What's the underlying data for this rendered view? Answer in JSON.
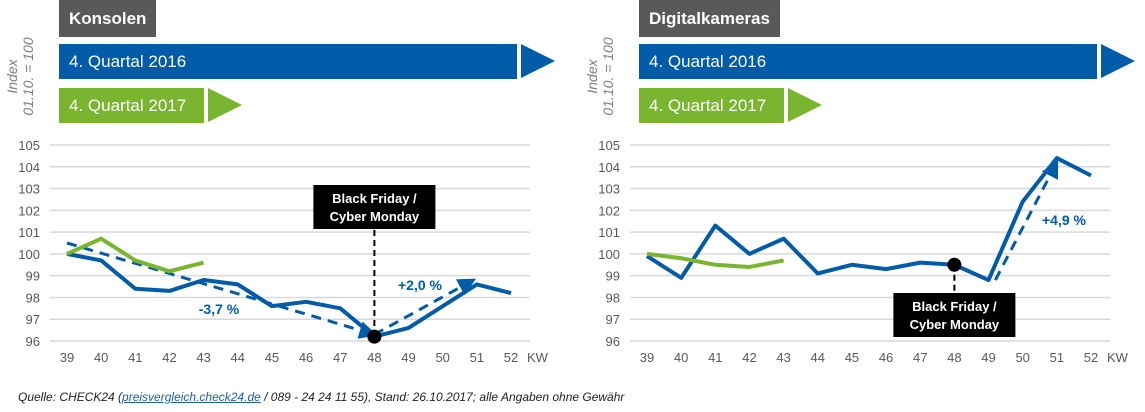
{
  "legend": {
    "series_2016": "4. Quartal 2016",
    "series_2017": "4. Quartal 2017"
  },
  "colors": {
    "blue": "#005BA8",
    "green": "#7AB52F",
    "title_bg": "#595959",
    "grid": "#D9D9D9",
    "tick": "#595959"
  },
  "y_axis_label": {
    "line1": "Index",
    "line2": "01.10. = 100"
  },
  "source": {
    "prefix": "Quelle: CHECK24 (",
    "link": "preisvergleich.check24.de",
    "suffix": " / 089 - 24 24 11 55), Stand: 26.10.2017; alle Angaben ohne Gewähr"
  },
  "chart_data": [
    {
      "type": "line",
      "title": "Konsolen",
      "xlabel": "KW",
      "ylabel": "Index 01.10. = 100",
      "x": [
        39,
        40,
        41,
        42,
        43,
        44,
        45,
        46,
        47,
        48,
        49,
        50,
        51,
        52
      ],
      "ylim": [
        96,
        105
      ],
      "yticks": [
        96,
        97,
        98,
        99,
        100,
        101,
        102,
        103,
        104,
        105
      ],
      "grid": true,
      "series": [
        {
          "name": "4. Quartal 2016",
          "color": "#005BA8",
          "values": [
            100.0,
            99.7,
            98.4,
            98.3,
            98.8,
            98.6,
            97.6,
            97.8,
            97.5,
            96.2,
            96.6,
            97.6,
            98.6,
            98.2
          ]
        },
        {
          "name": "4. Quartal 2017",
          "color": "#7AB52F",
          "values": [
            100.0,
            100.7,
            99.7,
            99.2,
            99.6,
            null,
            null,
            null,
            null,
            null,
            null,
            null,
            null,
            null
          ]
        }
      ],
      "trend_arrows": [
        {
          "from": [
            39,
            100.5
          ],
          "to": [
            48,
            96.3
          ],
          "label": "-3,7 %"
        },
        {
          "from": [
            48,
            96.3
          ],
          "to": [
            50.9,
            98.8
          ],
          "label": "+2,0 %"
        }
      ],
      "annotation": {
        "text_line1": "Black Friday /",
        "text_line2": "Cyber Monday",
        "x": 48,
        "y": 96.2,
        "position": "above"
      }
    },
    {
      "type": "line",
      "title": "Digitalkameras",
      "xlabel": "KW",
      "ylabel": "Index 01.10. = 100",
      "x": [
        39,
        40,
        41,
        42,
        43,
        44,
        45,
        46,
        47,
        48,
        49,
        50,
        51,
        52
      ],
      "ylim": [
        96,
        105
      ],
      "yticks": [
        96,
        97,
        98,
        99,
        100,
        101,
        102,
        103,
        104,
        105
      ],
      "grid": true,
      "series": [
        {
          "name": "4. Quartal 2016",
          "color": "#005BA8",
          "values": [
            99.9,
            98.9,
            101.3,
            100.0,
            100.7,
            99.1,
            99.5,
            99.3,
            99.6,
            99.5,
            98.8,
            102.4,
            104.4,
            103.6
          ]
        },
        {
          "name": "4. Quartal 2017",
          "color": "#7AB52F",
          "values": [
            100.0,
            99.8,
            99.5,
            99.4,
            99.7,
            null,
            null,
            null,
            null,
            null,
            null,
            null,
            null,
            null
          ]
        }
      ],
      "trend_arrows": [
        {
          "from": [
            49.2,
            98.8
          ],
          "to": [
            51,
            104.2
          ],
          "label": "+4,9 %"
        }
      ],
      "annotation": {
        "text_line1": "Black Friday /",
        "text_line2": "Cyber Monday",
        "x": 48,
        "y": 99.5,
        "position": "below"
      }
    }
  ]
}
